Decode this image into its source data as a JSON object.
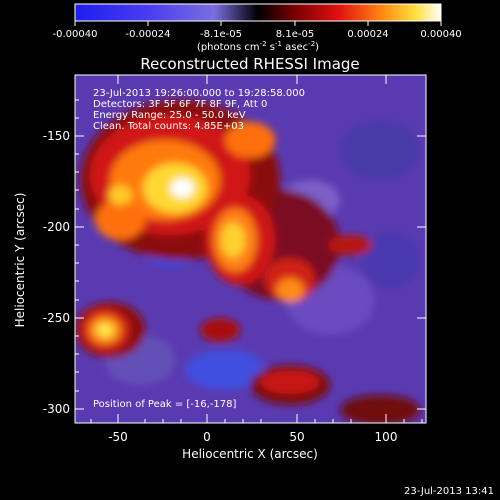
{
  "colorbar": {
    "ticks": [
      "-0.00040",
      "-0.00024",
      "-8.1e-05",
      "8.1e-05",
      "0.00024",
      "0.00040"
    ],
    "units_pre": "(photons cm",
    "units_exp1": "-2",
    "units_mid": " s",
    "units_exp2": "-1",
    "units_post": " asec",
    "units_exp3": "-2",
    "units_close": ")"
  },
  "title": "Reconstructed RHESSI Image",
  "info": {
    "time": "23-Jul-2013 19:26:00.000 to 19:28:58.000",
    "detectors": "Detectors: 3F 5F 6F 7F 8F 9F, Att 0",
    "energy": "Energy Range: 25.0 - 50.0 keV",
    "clean": "Clean. Total counts: 4.85E+03"
  },
  "peak": "Position of Peak = [-16,-178]",
  "xlabel": "Heliocentric X (arcsec)",
  "ylabel": "Heliocentric Y (arcsec)",
  "xticks": [
    "-50",
    "0",
    "50",
    "100"
  ],
  "yticks": [
    "-150",
    "-200",
    "-250",
    "-300"
  ],
  "timestamp": "23-Jul-2013 13:41"
}
